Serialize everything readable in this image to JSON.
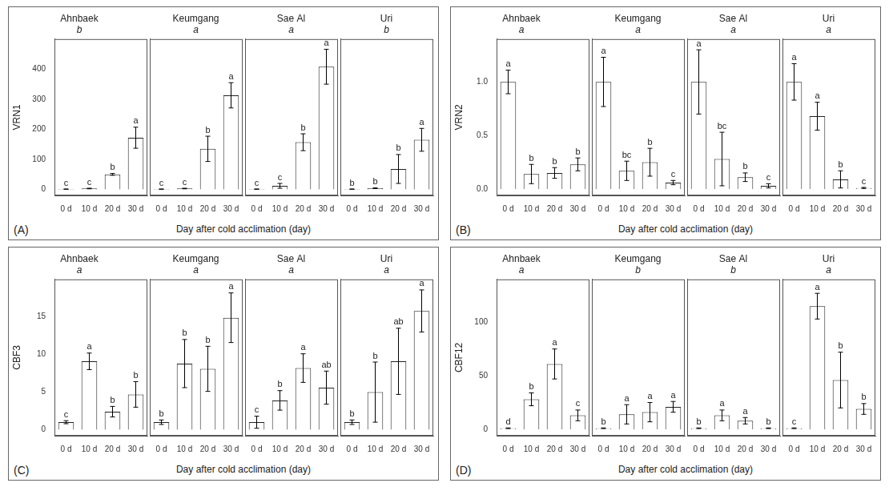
{
  "chart_data": [
    {
      "type": "bar",
      "label": "(A)",
      "y_label": "VRN1",
      "x_label": "Day after cold acclimation (day)",
      "categories": [
        "0 d",
        "10 d",
        "20 d",
        "30 d"
      ],
      "ylim": [
        -20,
        500
      ],
      "yticks": [
        0,
        100,
        200,
        300,
        400
      ],
      "color": "#ffffff",
      "grid": false,
      "series": [
        {
          "name": "Ahnbaek",
          "group_letter": "b",
          "values": [
            1,
            3,
            50,
            172
          ],
          "errors": [
            0.3,
            1,
            3,
            35
          ],
          "letters": [
            "c",
            "c",
            "b",
            "a"
          ]
        },
        {
          "name": "Keumgang",
          "group_letter": "a",
          "values": [
            1,
            3,
            135,
            313
          ],
          "errors": [
            0.3,
            1,
            42,
            42
          ],
          "letters": [
            "c",
            "c",
            "b",
            "a"
          ]
        },
        {
          "name": "Sae Al",
          "group_letter": "a",
          "values": [
            1,
            12,
            157,
            408
          ],
          "errors": [
            0.3,
            8,
            28,
            58
          ],
          "letters": [
            "c",
            "c",
            "b",
            "a"
          ]
        },
        {
          "name": "Uri",
          "group_letter": "b",
          "values": [
            1,
            4,
            68,
            165
          ],
          "errors": [
            0.3,
            1,
            48,
            38
          ],
          "letters": [
            "b",
            "b",
            "b",
            "a"
          ]
        }
      ]
    },
    {
      "type": "bar",
      "label": "(B)",
      "y_label": "VRN2",
      "x_label": "Day after cold acclimation (day)",
      "categories": [
        "0 d",
        "10 d",
        "20 d",
        "30 d"
      ],
      "ylim": [
        -0.06,
        1.4
      ],
      "yticks": [
        {
          "value": 0,
          "label": "0.0"
        },
        {
          "value": 0.5,
          "label": "0.5"
        },
        {
          "value": 1,
          "label": "1.0"
        }
      ],
      "color": "#ffffff",
      "grid": false,
      "series": [
        {
          "name": "Ahnbaek",
          "group_letter": "a",
          "values": [
            1.0,
            0.14,
            0.15,
            0.23
          ],
          "errors": [
            0.11,
            0.09,
            0.05,
            0.06
          ],
          "letters": [
            "a",
            "b",
            "b",
            "b"
          ]
        },
        {
          "name": "Keumgang",
          "group_letter": "a",
          "values": [
            1.0,
            0.17,
            0.25,
            0.06
          ],
          "errors": [
            0.23,
            0.09,
            0.13,
            0.02
          ],
          "letters": [
            "a",
            "bc",
            "b",
            "c"
          ]
        },
        {
          "name": "Sae Al",
          "group_letter": "a",
          "values": [
            1.0,
            0.28,
            0.11,
            0.03
          ],
          "errors": [
            0.3,
            0.25,
            0.04,
            0.02
          ],
          "letters": [
            "a",
            "bc",
            "b",
            "c"
          ]
        },
        {
          "name": "Uri",
          "group_letter": "a",
          "values": [
            1.0,
            0.68,
            0.09,
            0.01
          ],
          "errors": [
            0.17,
            0.13,
            0.08,
            0.005
          ],
          "letters": [
            "a",
            "a",
            "b",
            "c"
          ]
        }
      ]
    },
    {
      "type": "bar",
      "label": "(C)",
      "y_label": "CBF3",
      "x_label": "Day after cold acclimation (day)",
      "categories": [
        "0 d",
        "10 d",
        "20 d",
        "30 d"
      ],
      "ylim": [
        -0.8,
        20
      ],
      "yticks": [
        0,
        5,
        10,
        15
      ],
      "color": "#ffffff",
      "grid": false,
      "series": [
        {
          "name": "Ahnbaek",
          "group_letter": "a",
          "values": [
            1,
            9.1,
            2.4,
            4.7
          ],
          "errors": [
            0.2,
            1.1,
            0.7,
            1.7
          ],
          "letters": [
            "c",
            "a",
            "b",
            "b"
          ]
        },
        {
          "name": "Keumgang",
          "group_letter": "a",
          "values": [
            1,
            8.8,
            8.1,
            14.9
          ],
          "errors": [
            0.3,
            3.2,
            3.0,
            3.3
          ],
          "letters": [
            "b",
            "b",
            "b",
            "a"
          ]
        },
        {
          "name": "Sae Al",
          "group_letter": "a",
          "values": [
            1,
            3.9,
            8.2,
            5.6
          ],
          "errors": [
            0.8,
            1.3,
            1.9,
            2.2
          ],
          "letters": [
            "c",
            "b",
            "a",
            "ab"
          ]
        },
        {
          "name": "Uri",
          "group_letter": "a",
          "values": [
            1,
            5.0,
            9.1,
            15.8
          ],
          "errors": [
            0.3,
            4.0,
            4.4,
            2.8
          ],
          "letters": [
            "b",
            "b",
            "ab",
            "a"
          ]
        }
      ]
    },
    {
      "type": "bar",
      "label": "(D)",
      "y_label": "CBF12",
      "x_label": "Day after cold acclimation (day)",
      "categories": [
        "0 d",
        "10 d",
        "20 d",
        "30 d"
      ],
      "ylim": [
        -6,
        140
      ],
      "yticks": [
        0,
        50,
        100
      ],
      "color": "#ffffff",
      "grid": false,
      "series": [
        {
          "name": "Ahnbaek",
          "group_letter": "a",
          "values": [
            1,
            28,
            61,
            13
          ],
          "errors": [
            0.3,
            6,
            14,
            5
          ],
          "letters": [
            "d",
            "b",
            "a",
            "c"
          ]
        },
        {
          "name": "Keumgang",
          "group_letter": "b",
          "values": [
            1,
            14,
            16,
            21
          ],
          "errors": [
            0.3,
            9,
            9,
            5
          ],
          "letters": [
            "b",
            "a",
            "a",
            "a"
          ]
        },
        {
          "name": "Sae Al",
          "group_letter": "b",
          "values": [
            1,
            13,
            8,
            1
          ],
          "errors": [
            0.3,
            5,
            3,
            0.3
          ],
          "letters": [
            "b",
            "a",
            "a",
            "b"
          ]
        },
        {
          "name": "Uri",
          "group_letter": "a",
          "values": [
            1,
            115,
            46,
            19
          ],
          "errors": [
            0.3,
            12,
            26,
            5
          ],
          "letters": [
            "c",
            "a",
            "b",
            "b"
          ]
        }
      ]
    }
  ]
}
